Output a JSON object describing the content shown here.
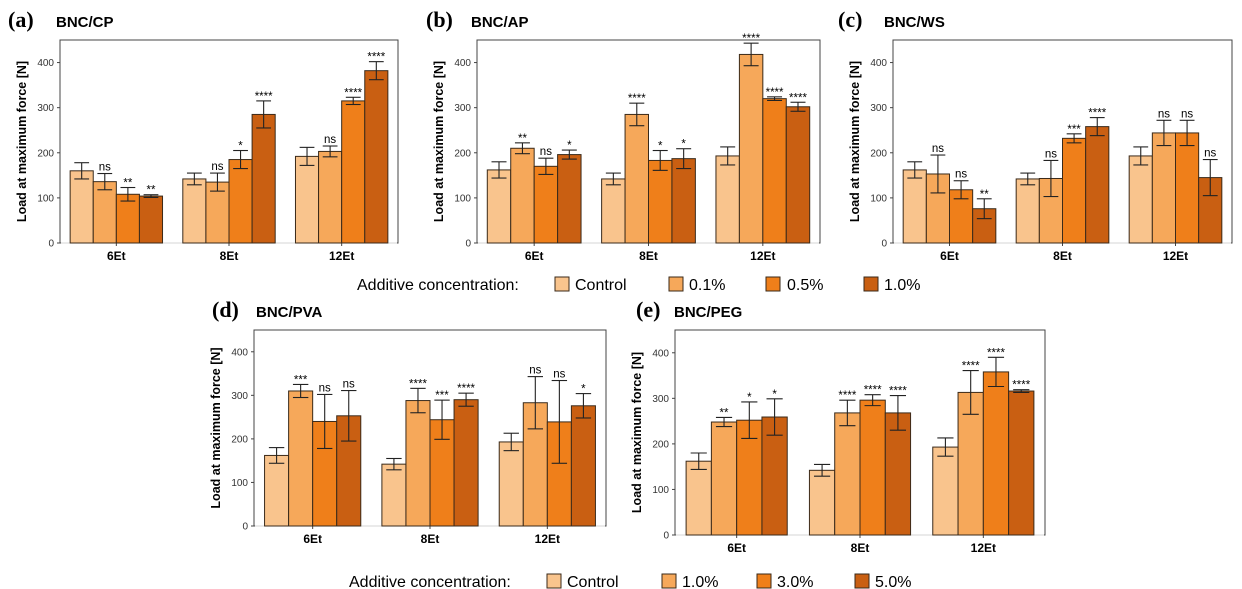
{
  "colors": {
    "c0": "#f9c48d",
    "c1": "#f6a85a",
    "c2": "#ef7f1a",
    "c3": "#c95f12"
  },
  "legends": [
    {
      "title": "Additive concentration:",
      "labels": [
        "Control",
        "0.1%",
        "0.5%",
        "1.0%"
      ]
    },
    {
      "title": "Additive concentration:",
      "labels": [
        "Control",
        "1.0%",
        "3.0%",
        "5.0%"
      ]
    }
  ],
  "chart_data": [
    {
      "type": "bar",
      "panel": "(a)",
      "title": "BNC/CP",
      "ylabel": "Load at maximum force [N]",
      "ylim": [
        0,
        450
      ],
      "yticks": [
        0,
        100,
        200,
        300,
        400
      ],
      "categories": [
        "6Et",
        "8Et",
        "12Et"
      ],
      "legend_index": 0,
      "series": [
        {
          "values": [
            160,
            142,
            192
          ],
          "errors": [
            18,
            13,
            20
          ],
          "sig": [
            "",
            "",
            ""
          ]
        },
        {
          "values": [
            136,
            135,
            203
          ],
          "errors": [
            18,
            20,
            12
          ],
          "sig": [
            "ns",
            "ns",
            "ns"
          ]
        },
        {
          "values": [
            108,
            185,
            315
          ],
          "errors": [
            15,
            20,
            8
          ],
          "sig": [
            "**",
            "*",
            "****"
          ]
        },
        {
          "values": [
            104,
            285,
            382
          ],
          "errors": [
            3,
            30,
            20
          ],
          "sig": [
            "**",
            "****",
            "****"
          ]
        }
      ]
    },
    {
      "type": "bar",
      "panel": "(b)",
      "title": "BNC/AP",
      "ylabel": "Load at maximum force [N]",
      "ylim": [
        0,
        450
      ],
      "yticks": [
        0,
        100,
        200,
        300,
        400
      ],
      "categories": [
        "6Et",
        "8Et",
        "12Et"
      ],
      "legend_index": 0,
      "series": [
        {
          "values": [
            162,
            142,
            193
          ],
          "errors": [
            18,
            13,
            20
          ],
          "sig": [
            "",
            "",
            ""
          ]
        },
        {
          "values": [
            210,
            285,
            418
          ],
          "errors": [
            12,
            25,
            25
          ],
          "sig": [
            "**",
            "****",
            "****"
          ]
        },
        {
          "values": [
            170,
            183,
            320
          ],
          "errors": [
            18,
            22,
            4
          ],
          "sig": [
            "ns",
            "*",
            "****"
          ]
        },
        {
          "values": [
            196,
            187,
            302
          ],
          "errors": [
            10,
            22,
            10
          ],
          "sig": [
            "*",
            "*",
            "****"
          ]
        }
      ]
    },
    {
      "type": "bar",
      "panel": "(c)",
      "title": "BNC/WS",
      "ylabel": "Load at maximum force [N]",
      "ylim": [
        0,
        450
      ],
      "yticks": [
        0,
        100,
        200,
        300,
        400
      ],
      "categories": [
        "6Et",
        "8Et",
        "12Et"
      ],
      "legend_index": 0,
      "series": [
        {
          "values": [
            162,
            142,
            193
          ],
          "errors": [
            18,
            13,
            20
          ],
          "sig": [
            "",
            "",
            ""
          ]
        },
        {
          "values": [
            153,
            143,
            244
          ],
          "errors": [
            42,
            40,
            28
          ],
          "sig": [
            "ns",
            "ns",
            "ns"
          ]
        },
        {
          "values": [
            118,
            232,
            244
          ],
          "errors": [
            20,
            10,
            28
          ],
          "sig": [
            "ns",
            "***",
            "ns"
          ]
        },
        {
          "values": [
            76,
            258,
            145
          ],
          "errors": [
            22,
            20,
            40
          ],
          "sig": [
            "**",
            "****",
            "ns"
          ]
        }
      ]
    },
    {
      "type": "bar",
      "panel": "(d)",
      "title": "BNC/PVA",
      "ylabel": "Load at maximum force [N]",
      "ylim": [
        0,
        450
      ],
      "yticks": [
        0,
        100,
        200,
        300,
        400
      ],
      "categories": [
        "6Et",
        "8Et",
        "12Et"
      ],
      "legend_index": 1,
      "series": [
        {
          "values": [
            162,
            142,
            193
          ],
          "errors": [
            18,
            13,
            20
          ],
          "sig": [
            "",
            "",
            ""
          ]
        },
        {
          "values": [
            310,
            288,
            283
          ],
          "errors": [
            15,
            28,
            60
          ],
          "sig": [
            "***",
            "****",
            "ns"
          ]
        },
        {
          "values": [
            240,
            244,
            239
          ],
          "errors": [
            62,
            45,
            95
          ],
          "sig": [
            "ns",
            "***",
            "ns"
          ]
        },
        {
          "values": [
            253,
            290,
            276
          ],
          "errors": [
            58,
            15,
            28
          ],
          "sig": [
            "ns",
            "****",
            "*"
          ]
        }
      ]
    },
    {
      "type": "bar",
      "panel": "(e)",
      "title": "BNC/PEG",
      "ylabel": "Load at maximum force [N]",
      "ylim": [
        0,
        450
      ],
      "yticks": [
        0,
        100,
        200,
        300,
        400
      ],
      "categories": [
        "6Et",
        "8Et",
        "12Et"
      ],
      "legend_index": 1,
      "series": [
        {
          "values": [
            162,
            142,
            193
          ],
          "errors": [
            18,
            13,
            20
          ],
          "sig": [
            "",
            "",
            ""
          ]
        },
        {
          "values": [
            248,
            268,
            313
          ],
          "errors": [
            10,
            28,
            48
          ],
          "sig": [
            "**",
            "****",
            "****"
          ]
        },
        {
          "values": [
            252,
            296,
            358
          ],
          "errors": [
            40,
            12,
            32
          ],
          "sig": [
            "*",
            "****",
            "****"
          ]
        },
        {
          "values": [
            259,
            268,
            316
          ],
          "errors": [
            40,
            38,
            3
          ],
          "sig": [
            "*",
            "****",
            "****"
          ]
        }
      ]
    }
  ]
}
